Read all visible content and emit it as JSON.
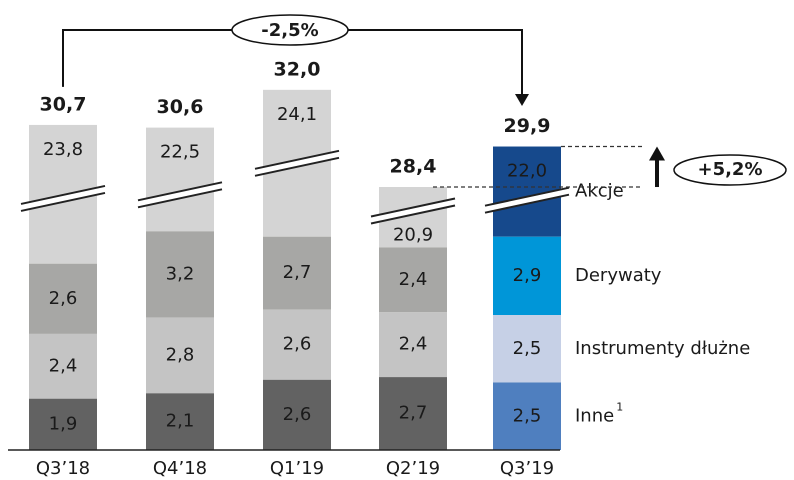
{
  "chart_data": {
    "type": "bar",
    "stacked": true,
    "categories": [
      "Q3’18",
      "Q4’18",
      "Q1’19",
      "Q2’19",
      "Q3’19"
    ],
    "series": [
      {
        "name": "Inne",
        "footnote": "1",
        "colors": [
          "#626262",
          "#626262",
          "#626262",
          "#626262",
          "#4f7fbf"
        ],
        "values": [
          1.9,
          2.1,
          2.6,
          2.7,
          2.5
        ],
        "value_labels": [
          "1,9",
          "2,1",
          "2,6",
          "2,7",
          "2,5"
        ]
      },
      {
        "name": "Instrumenty dłużne",
        "colors": [
          "#c4c4c4",
          "#c4c4c4",
          "#c4c4c4",
          "#c4c4c4",
          "#c6d0e6"
        ],
        "values": [
          2.4,
          2.8,
          2.6,
          2.4,
          2.5
        ],
        "value_labels": [
          "2,4",
          "2,8",
          "2,6",
          "2,4",
          "2,5"
        ]
      },
      {
        "name": "Derywaty",
        "colors": [
          "#a7a7a5",
          "#a7a7a5",
          "#a7a7a5",
          "#a7a7a5",
          "#0096d8"
        ],
        "values": [
          2.6,
          3.2,
          2.7,
          2.4,
          2.9
        ],
        "value_labels": [
          "2,6",
          "3,2",
          "2,7",
          "2,4",
          "2,9"
        ]
      },
      {
        "name": "Akcje",
        "colors": [
          "#d4d4d4",
          "#d4d4d4",
          "#d4d4d4",
          "#d4d4d4",
          "#16498c"
        ],
        "values": [
          23.8,
          22.5,
          24.1,
          20.9,
          22.0
        ],
        "value_labels": [
          "23,8",
          "22,5",
          "24,1",
          "20,9",
          "22,0"
        ]
      }
    ],
    "totals": [
      30.7,
      30.6,
      32.0,
      28.4,
      29.9
    ],
    "total_labels": [
      "30,7",
      "30,6",
      "32,0",
      "28,4",
      "29,9"
    ],
    "annotations": [
      "-2,5%",
      "+5,2%"
    ]
  }
}
